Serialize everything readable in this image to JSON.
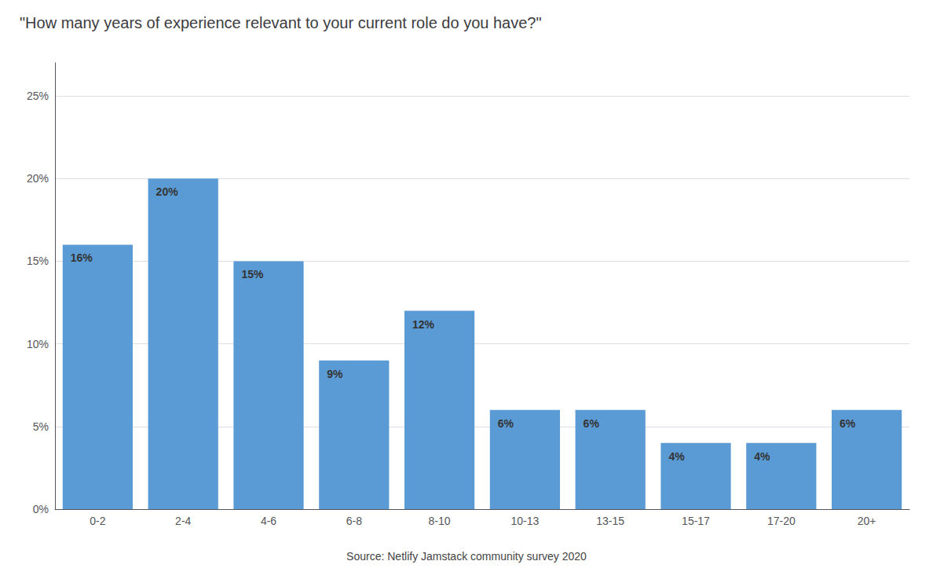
{
  "chart_data": {
    "type": "bar",
    "title": "\"How many years of experience relevant to your current role do you have?\"",
    "categories": [
      "0-2",
      "2-4",
      "4-6",
      "6-8",
      "8-10",
      "10-13",
      "13-15",
      "15-17",
      "17-20",
      "20+"
    ],
    "values": [
      16,
      20,
      15,
      9,
      12,
      6,
      6,
      4,
      4,
      6
    ],
    "value_labels": [
      "16%",
      "20%",
      "15%",
      "9%",
      "12%",
      "6%",
      "6%",
      "4%",
      "4%",
      "6%"
    ],
    "data_labels": true,
    "color": "#5b9bd5",
    "ylim": [
      0,
      27
    ],
    "yticks": [
      {
        "value": 0,
        "label": "0%"
      },
      {
        "value": 5,
        "label": "5%"
      },
      {
        "value": 10,
        "label": "10%"
      },
      {
        "value": 15,
        "label": "15%"
      },
      {
        "value": 20,
        "label": "20%"
      },
      {
        "value": 25,
        "label": "25%"
      }
    ],
    "grid": true,
    "annotations": [
      "Source: Netlify Jamstack community survey 2020"
    ]
  }
}
